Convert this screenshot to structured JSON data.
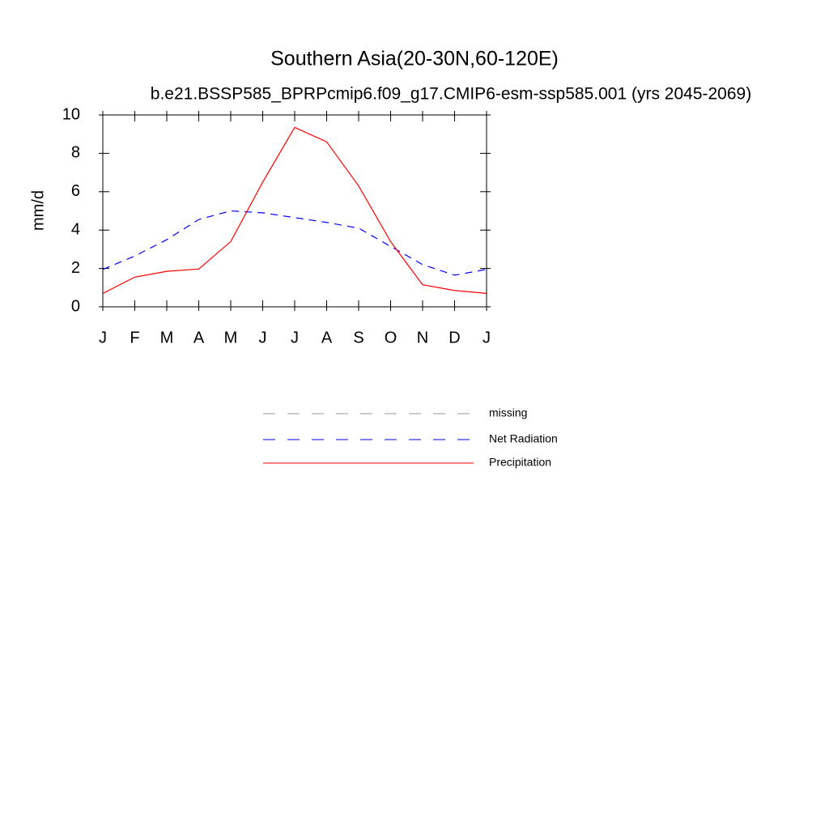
{
  "chart_data": {
    "type": "line",
    "title": "Southern Asia(20-30N,60-120E)",
    "subtitle": "b.e21.BSSP585_BPRPcmip6.f09_g17.CMIP6-esm-ssp585.001 (yrs 2045-2069)",
    "y_label": "mm/d",
    "categories": [
      "J",
      "F",
      "M",
      "A",
      "M",
      "J",
      "J",
      "A",
      "S",
      "O",
      "N",
      "D",
      "J"
    ],
    "ylim": [
      0,
      10
    ],
    "yticks": [
      0,
      2,
      4,
      6,
      8,
      10
    ],
    "series": [
      {
        "name": "missing",
        "color": "#999999",
        "dash": true,
        "values": [
          null,
          null,
          null,
          null,
          null,
          null,
          null,
          null,
          null,
          null,
          null,
          null,
          null
        ]
      },
      {
        "name": "Net Radiation",
        "color": "#0000ff",
        "dash": true,
        "values": [
          1.95,
          2.65,
          3.5,
          4.55,
          5.0,
          4.9,
          4.65,
          4.4,
          4.1,
          3.15,
          2.2,
          1.65,
          1.95
        ]
      },
      {
        "name": "Precipitation",
        "color": "#ff0000",
        "dash": false,
        "values": [
          0.7,
          1.55,
          1.85,
          1.97,
          3.4,
          6.5,
          9.35,
          8.6,
          6.3,
          3.4,
          1.15,
          0.85,
          0.7
        ]
      }
    ]
  }
}
